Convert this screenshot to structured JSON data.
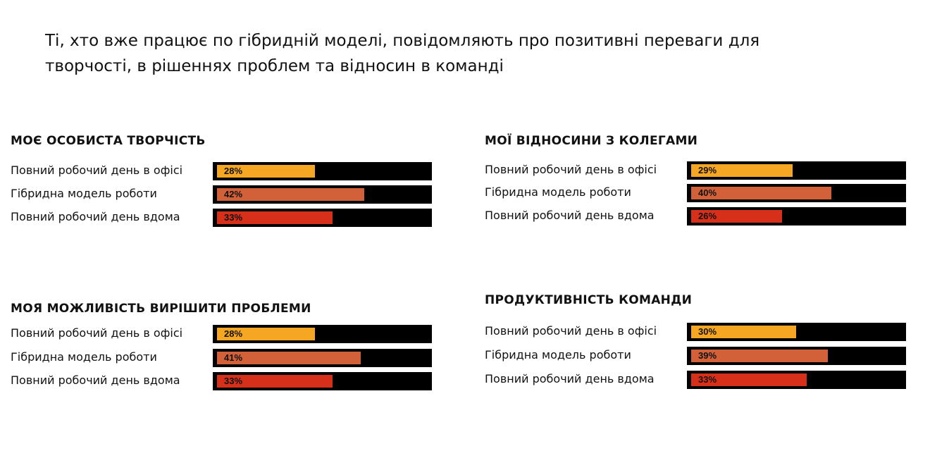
{
  "headline": "Ті, хто вже працює по гібридній моделі, повідомляють про позитивні переваги для творчості, в рішеннях проблем та відносин в команді",
  "chart_data": [
    {
      "type": "bar",
      "title": "МОЄ ОСОБИСТА ТВОРЧІСТЬ",
      "categories": [
        "Повний робочий день в офісі",
        "Гібридна модель роботи",
        "Повний робочий день вдома"
      ],
      "values": [
        28,
        42,
        33
      ],
      "labels": [
        "28%",
        "42%",
        "33%"
      ],
      "colors": [
        "#F5A623",
        "#D2613A",
        "#D7301A"
      ],
      "xlim": [
        0,
        60
      ]
    },
    {
      "type": "bar",
      "title": "МОЇ ВІДНОСИНИ З КОЛЕГАМИ",
      "categories": [
        "Повний робочий день в офісі",
        "Гібридна модель роботи",
        "Повний робочий день вдома"
      ],
      "values": [
        29,
        40,
        26
      ],
      "labels": [
        "29%",
        "40%",
        "26%"
      ],
      "colors": [
        "#F5A623",
        "#D2613A",
        "#D7301A"
      ],
      "xlim": [
        0,
        60
      ]
    },
    {
      "type": "bar",
      "title": "МОЯ МОЖЛИВІСТЬ ВИРІШИТИ ПРОБЛЕМИ",
      "categories": [
        "Повний робочий день в офісі",
        "Гібридна модель роботи",
        "Повний робочий день вдома"
      ],
      "values": [
        28,
        41,
        33
      ],
      "labels": [
        "28%",
        "41%",
        "33%"
      ],
      "colors": [
        "#F5A623",
        "#D2613A",
        "#D7301A"
      ],
      "xlim": [
        0,
        60
      ]
    },
    {
      "type": "bar",
      "title": "ПРОДУКТИВНІСТЬ КОМАНДИ",
      "categories": [
        "Повний робочий день в офісі",
        "Гібридна модель роботи",
        "Повний робочий день вдома"
      ],
      "values": [
        30,
        39,
        33
      ],
      "labels": [
        "30%",
        "39%",
        "33%"
      ],
      "colors": [
        "#F5A623",
        "#D2613A",
        "#D7301A"
      ],
      "xlim": [
        0,
        60
      ]
    }
  ]
}
